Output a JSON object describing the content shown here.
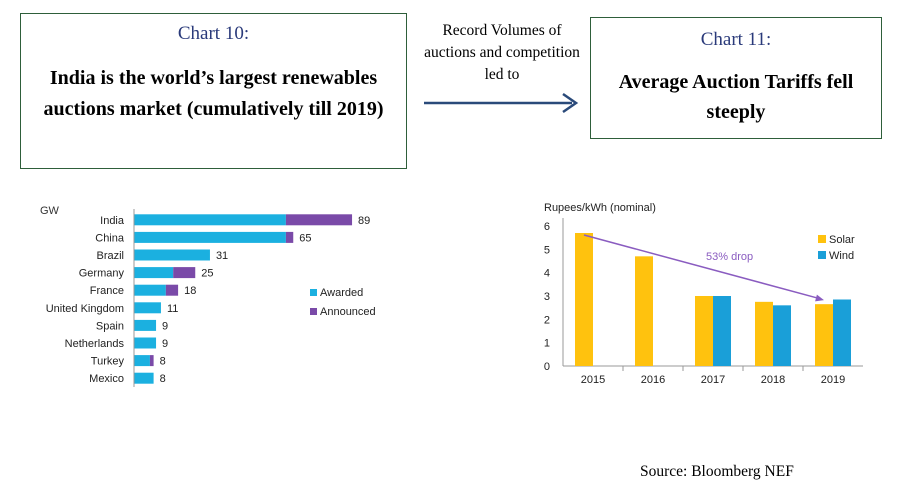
{
  "chart10": {
    "label": "Chart 10:",
    "headline": "India is the world’s largest renewables auctions market (cumulatively till 2019)"
  },
  "connector_text": "Record Volumes of auctions and competition led to",
  "chart11": {
    "label": "Chart 11:",
    "headline": "Average Auction Tariffs fell steeply"
  },
  "source": "Source: Bloomberg NEF",
  "colors": {
    "awarded": "#1bb0e0",
    "announced": "#7a4aa8",
    "solar": "#ffc20e",
    "wind": "#1a9fd8",
    "arrow": "#2a4a7a",
    "drop_arrow": "#8a5cc0"
  },
  "chart_data": [
    {
      "type": "bar",
      "orientation": "horizontal",
      "stacked": true,
      "unit": "GW",
      "categories": [
        "India",
        "China",
        "Brazil",
        "Germany",
        "France",
        "United Kingdom",
        "Spain",
        "Netherlands",
        "Turkey",
        "Mexico"
      ],
      "series": [
        {
          "name": "Awarded",
          "values": [
            62,
            62,
            31,
            16,
            13,
            11,
            9,
            9,
            6.5,
            8
          ]
        },
        {
          "name": "Announced",
          "values": [
            27,
            3,
            0,
            9,
            5,
            0,
            0,
            0,
            1.5,
            0
          ]
        }
      ],
      "totals": [
        "89",
        "65",
        "31",
        "25",
        "18",
        "11",
        "9",
        "9",
        "8",
        "8"
      ],
      "xlim": [
        0,
        100
      ],
      "legend": "right"
    },
    {
      "type": "bar",
      "ylabel": "Rupees/kWh (nominal)",
      "categories": [
        "2015",
        "2016",
        "2017",
        "2018",
        "2019"
      ],
      "series": [
        {
          "name": "Solar",
          "values": [
            5.7,
            4.7,
            3.0,
            2.75,
            2.65
          ]
        },
        {
          "name": "Wind",
          "values": [
            null,
            null,
            3.0,
            2.6,
            2.85
          ]
        }
      ],
      "ylim": [
        0,
        6
      ],
      "yticks": [
        "0",
        "1",
        "2",
        "3",
        "4",
        "5",
        "6"
      ],
      "annotation": "53% drop",
      "legend": "right"
    }
  ]
}
